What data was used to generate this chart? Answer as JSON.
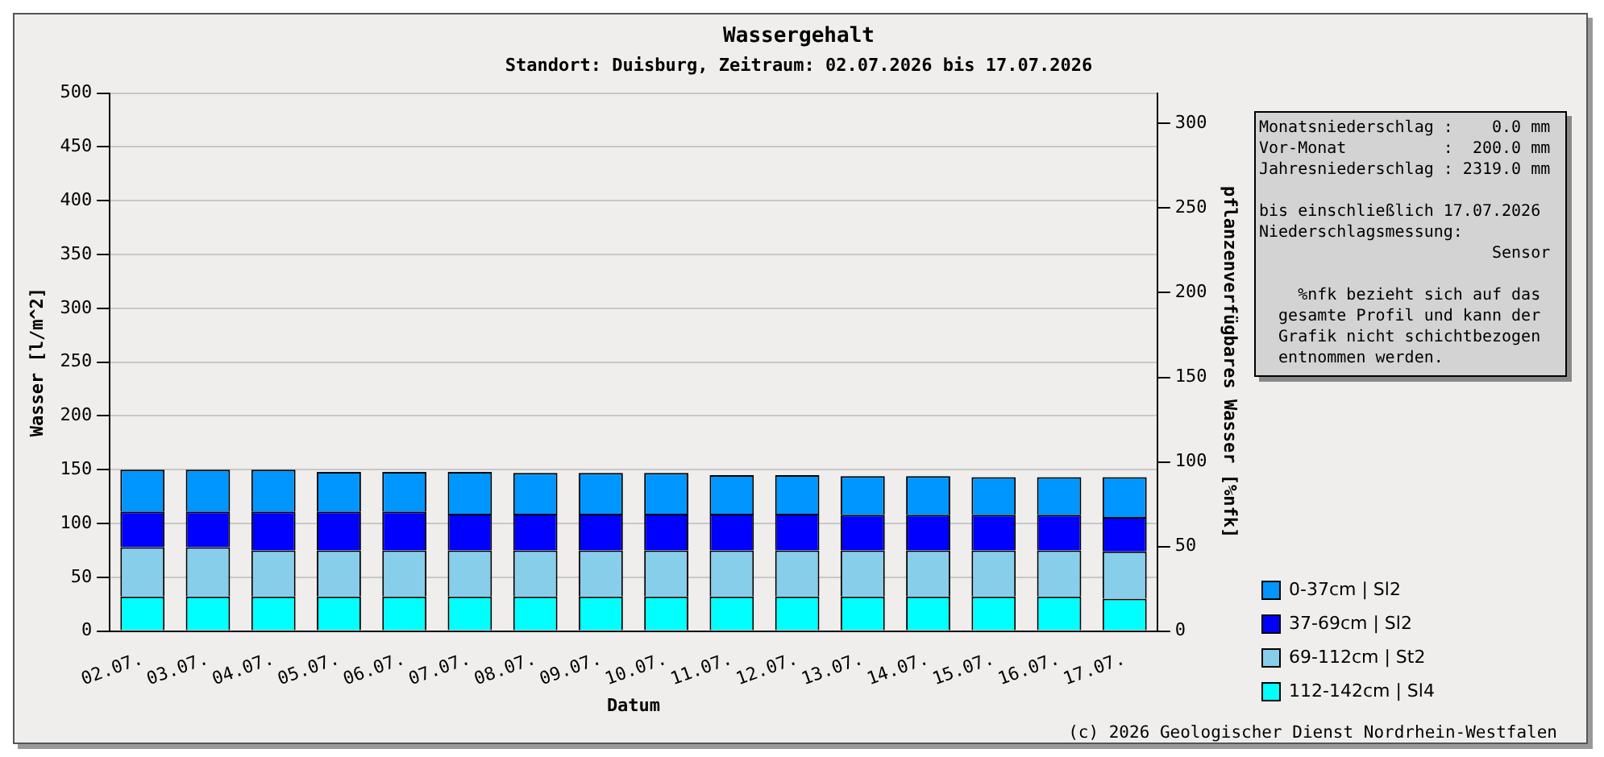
{
  "chart_data": {
    "type": "bar",
    "title": "Wassergehalt",
    "subtitle": "Standort: Duisburg, Zeitraum: 02.07.2026 bis 17.07.2026",
    "xlabel": "Datum",
    "ylabel": "Wasser [l/m^2]",
    "y2label": "pflanzenverfügbares Wasser [%nfk]",
    "categories": [
      "02.07.",
      "03.07.",
      "04.07.",
      "05.07.",
      "06.07.",
      "07.07.",
      "08.07.",
      "09.07.",
      "10.07.",
      "11.07.",
      "12.07.",
      "13.07.",
      "14.07.",
      "15.07.",
      "16.07.",
      "17.07."
    ],
    "stacked": true,
    "series": [
      {
        "name": "112-142cm | Sl4",
        "color": "#00ffff",
        "values": [
          32,
          32,
          32,
          32,
          32,
          32,
          32,
          32,
          32,
          32,
          32,
          32,
          32,
          32,
          32,
          30
        ]
      },
      {
        "name": "69-112cm | St2",
        "color": "#87ceeb",
        "values": [
          46,
          46,
          43,
          43,
          43,
          43,
          43,
          43,
          43,
          43,
          43,
          43,
          43,
          43,
          43,
          44
        ]
      },
      {
        "name": "37-69cm | Sl2",
        "color": "#0000ff",
        "values": [
          33,
          33,
          36,
          36,
          36,
          34,
          34,
          34,
          34,
          34,
          34,
          33,
          33,
          33,
          33,
          32
        ]
      },
      {
        "name": "0-37cm | Sl2",
        "color": "#0096ff",
        "values": [
          39,
          39,
          39,
          37,
          37,
          39,
          38,
          38,
          38,
          36,
          36,
          36,
          36,
          35,
          35,
          37
        ]
      }
    ],
    "ylim": [
      0,
      500
    ],
    "yticks": [
      0,
      50,
      100,
      150,
      200,
      250,
      300,
      350,
      400,
      450,
      500
    ],
    "y2lim": [
      0,
      318
    ],
    "y2ticks": [
      0,
      50,
      100,
      150,
      200,
      250,
      300
    ],
    "grid": "y",
    "legend": "bottom right",
    "annotations": [
      "Monatsniederschlag :    0.0 mm\nVor-Monat          :  200.0 mm\nJahresniederschlag : 2319.0 mm",
      "bis einschließlich 17.07.2026\nNiederschlagsmessung:\n                        Sensor",
      "    %nfk bezieht sich auf das\n  gesamte Profil und kann der\n  Grafik nicht schichtbezogen\n  entnommen werden.",
      "(c) 2026 Geologischer Dienst Nordrhein-Westfalen"
    ]
  }
}
